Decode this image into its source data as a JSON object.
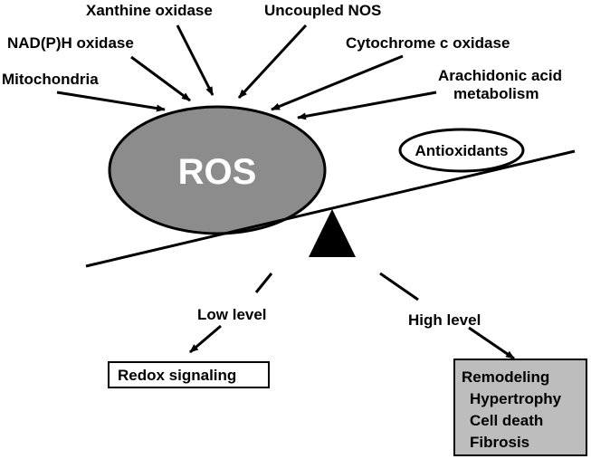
{
  "sources": {
    "xanthine_oxidase": "Xanthine oxidase",
    "uncoupled_nos": "Uncoupled NOS",
    "nadph_oxidase": "NAD(P)H oxidase",
    "cytochrome_c_oxidase": "Cytochrome c oxidase",
    "mitochondria": "Mitochondria",
    "arachidonic_line1": "Arachidonic acid",
    "arachidonic_line2": "metabolism"
  },
  "balance": {
    "ros": "ROS",
    "antioxidants": "Antioxidants"
  },
  "outcomes": {
    "low_level": "Low level",
    "high_level": "High level",
    "redox_signaling": "Redox signaling",
    "high_effects": [
      "Remodeling",
      "Hypertrophy",
      "Cell death",
      "Fibrosis"
    ]
  },
  "colors": {
    "ros_fill": "#8c8c8c",
    "outcome_box_fill": "#bdbdbd",
    "line": "#000000",
    "ros_text": "#ffffff"
  }
}
